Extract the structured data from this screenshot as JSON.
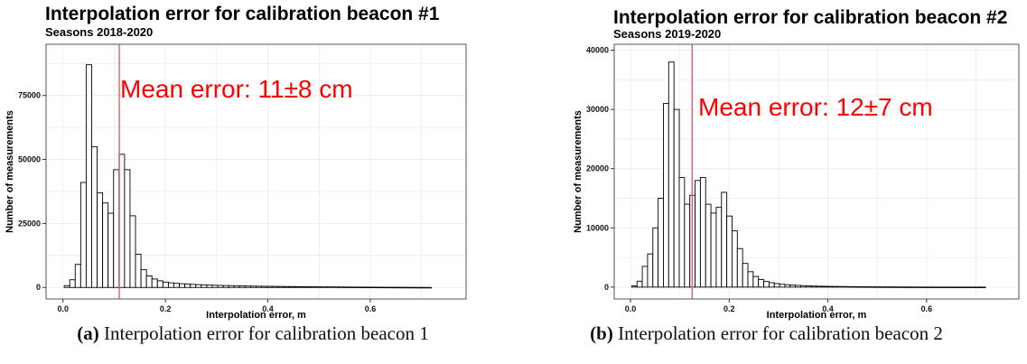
{
  "chart_data": [
    {
      "type": "bar",
      "title": "Interpolation error for calibration beacon #1",
      "subtitle": "Seasons 2018-2020",
      "xlabel": "Interpolation error, m",
      "ylabel": "Number of measurements",
      "xlim": [
        -0.033,
        0.787
      ],
      "ylim": [
        -4500,
        95000
      ],
      "xticks": [
        0.0,
        0.2,
        0.4,
        0.6
      ],
      "xtick_labels": [
        "0.0",
        "0.2",
        "0.4",
        "0.6"
      ],
      "yticks": [
        0,
        25000,
        50000,
        75000
      ],
      "ytick_labels": [
        "0",
        "25000",
        "50000",
        "75000"
      ],
      "grid": true,
      "bin_width": 0.0107,
      "bin_start": 0.0025,
      "values": [
        700,
        3000,
        9000,
        41000,
        87000,
        55000,
        37000,
        33000,
        29000,
        46000,
        52000,
        46000,
        28000,
        13000,
        7000,
        4500,
        3300,
        2600,
        2100,
        1800,
        1600,
        1450,
        1300,
        1200,
        1100,
        1000,
        920,
        850,
        800,
        740,
        690,
        640,
        600,
        560,
        520,
        490,
        460,
        430,
        400,
        375,
        350,
        330,
        310,
        290,
        270,
        255,
        240,
        225,
        210,
        195,
        180,
        165,
        150,
        135,
        120,
        110,
        100,
        90,
        80,
        70,
        60,
        50,
        40,
        30,
        20,
        10,
        5
      ],
      "mean_line_x": 0.11,
      "annotation": "Mean error: 11±8 cm",
      "annotation_color": "#ff0000",
      "mean_line_color": "#e0606a",
      "bar_fill": "#ffffff",
      "bar_stroke": "#000000"
    },
    {
      "type": "bar",
      "title": "Interpolation error for calibration beacon #2",
      "subtitle": "Seasons 2019-2020",
      "xlabel": "Interpolation error, m",
      "ylabel": "Number of measurements",
      "xlim": [
        -0.033,
        0.787
      ],
      "ylim": [
        -2000,
        41000
      ],
      "xticks": [
        0.0,
        0.2,
        0.4,
        0.6
      ],
      "xtick_labels": [
        "0.0",
        "0.2",
        "0.4",
        "0.6"
      ],
      "yticks": [
        0,
        10000,
        20000,
        30000,
        40000
      ],
      "ytick_labels": [
        "0",
        "10000",
        "20000",
        "30000",
        "40000"
      ],
      "grid": true,
      "bin_width": 0.0107,
      "bin_start": 0.0025,
      "values": [
        200,
        1000,
        3500,
        5600,
        10000,
        15000,
        31000,
        38000,
        30000,
        18500,
        14000,
        15500,
        18000,
        18500,
        14000,
        12500,
        13500,
        16000,
        12000,
        9500,
        6500,
        4000,
        2600,
        1800,
        1300,
        950,
        750,
        600,
        480,
        400,
        340,
        290,
        250,
        215,
        185,
        160,
        140,
        125,
        110,
        100,
        90,
        80,
        72,
        65,
        58,
        52,
        46,
        41,
        36,
        32,
        28,
        24,
        20,
        17,
        14,
        12,
        10,
        8,
        6,
        5,
        4,
        3,
        2,
        2,
        1,
        1,
        1
      ],
      "mean_line_x": 0.125,
      "annotation": "Mean error: 12±7 cm",
      "annotation_color": "#ff0000",
      "mean_line_color": "#e0606a",
      "bar_fill": "#ffffff",
      "bar_stroke": "#000000"
    }
  ],
  "captions": [
    {
      "tag": "(a)",
      "text": " Interpolation error for calibration beacon 1"
    },
    {
      "tag": "(b)",
      "text": " Interpolation error for calibration beacon 2"
    }
  ]
}
